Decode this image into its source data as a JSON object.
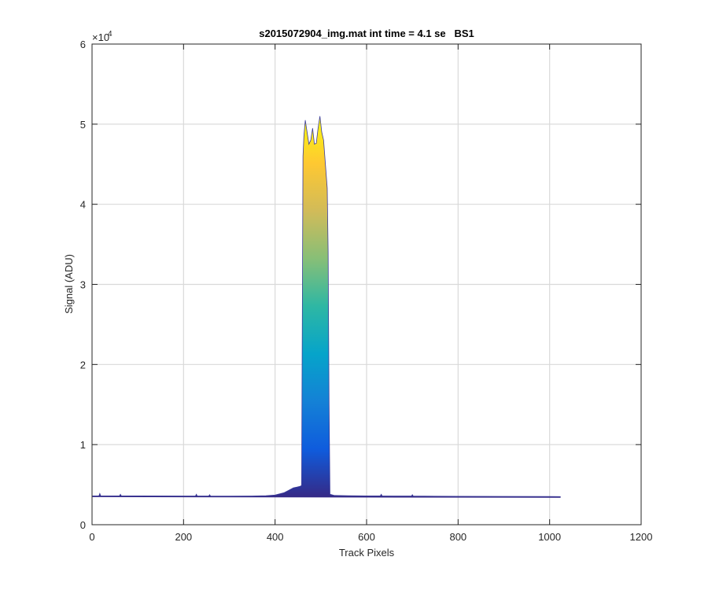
{
  "figure": {
    "title": "s2015072904_img.mat int time = 4.1 se   BS1"
  },
  "chart_data": {
    "type": "area",
    "title": "s2015072904_img.mat int time = 4.1 se   BS1",
    "xlabel": "Track Pixels",
    "ylabel": "Signal (ADU)",
    "xlim": [
      0,
      1200
    ],
    "ylim": [
      0,
      60000
    ],
    "xticks": [
      0,
      200,
      400,
      600,
      800,
      1000,
      1200
    ],
    "xtick_labels": [
      "0",
      "200",
      "400",
      "600",
      "800",
      "1000",
      "1200"
    ],
    "yticks": [
      0,
      10000,
      20000,
      30000,
      40000,
      50000,
      60000
    ],
    "ytick_labels": [
      "0",
      "1",
      "2",
      "3",
      "4",
      "5",
      "6"
    ],
    "y_exponent_label": "×10",
    "y_exponent_power": "4",
    "grid": true,
    "colormap": "parula",
    "colormap_stops": [
      "#352a87",
      "#0f5cdd",
      "#1481d6",
      "#06a4ca",
      "#2eb7a4",
      "#87bf77",
      "#d1bb59",
      "#fec832",
      "#f9fb0e"
    ],
    "line_color": "#3b3b9a",
    "series": [
      {
        "x": [
          1,
          15,
          17,
          19,
          60,
          62,
          64,
          100,
          200,
          226,
          228,
          230,
          255,
          257,
          259,
          300,
          350,
          380,
          400,
          420,
          430,
          440,
          448,
          455,
          458,
          461,
          463,
          466,
          470,
          474,
          478,
          482,
          486,
          490,
          494,
          498,
          502,
          506,
          510,
          514,
          516,
          518,
          520,
          530,
          560,
          600,
          630,
          632,
          634,
          660,
          698,
          700,
          702,
          750,
          800,
          900,
          1000,
          1024
        ],
        "y": [
          3600,
          3600,
          3900,
          3600,
          3600,
          3800,
          3600,
          3600,
          3580,
          3580,
          3800,
          3580,
          3580,
          3750,
          3580,
          3570,
          3580,
          3620,
          3700,
          4000,
          4300,
          4600,
          4700,
          4800,
          4900,
          46000,
          48500,
          50500,
          49000,
          47500,
          48000,
          49500,
          47500,
          47600,
          49500,
          51000,
          49000,
          48000,
          45000,
          42000,
          34000,
          15000,
          3800,
          3650,
          3620,
          3600,
          3600,
          3800,
          3600,
          3580,
          3580,
          3750,
          3580,
          3560,
          3550,
          3530,
          3520,
          3510
        ]
      }
    ]
  }
}
